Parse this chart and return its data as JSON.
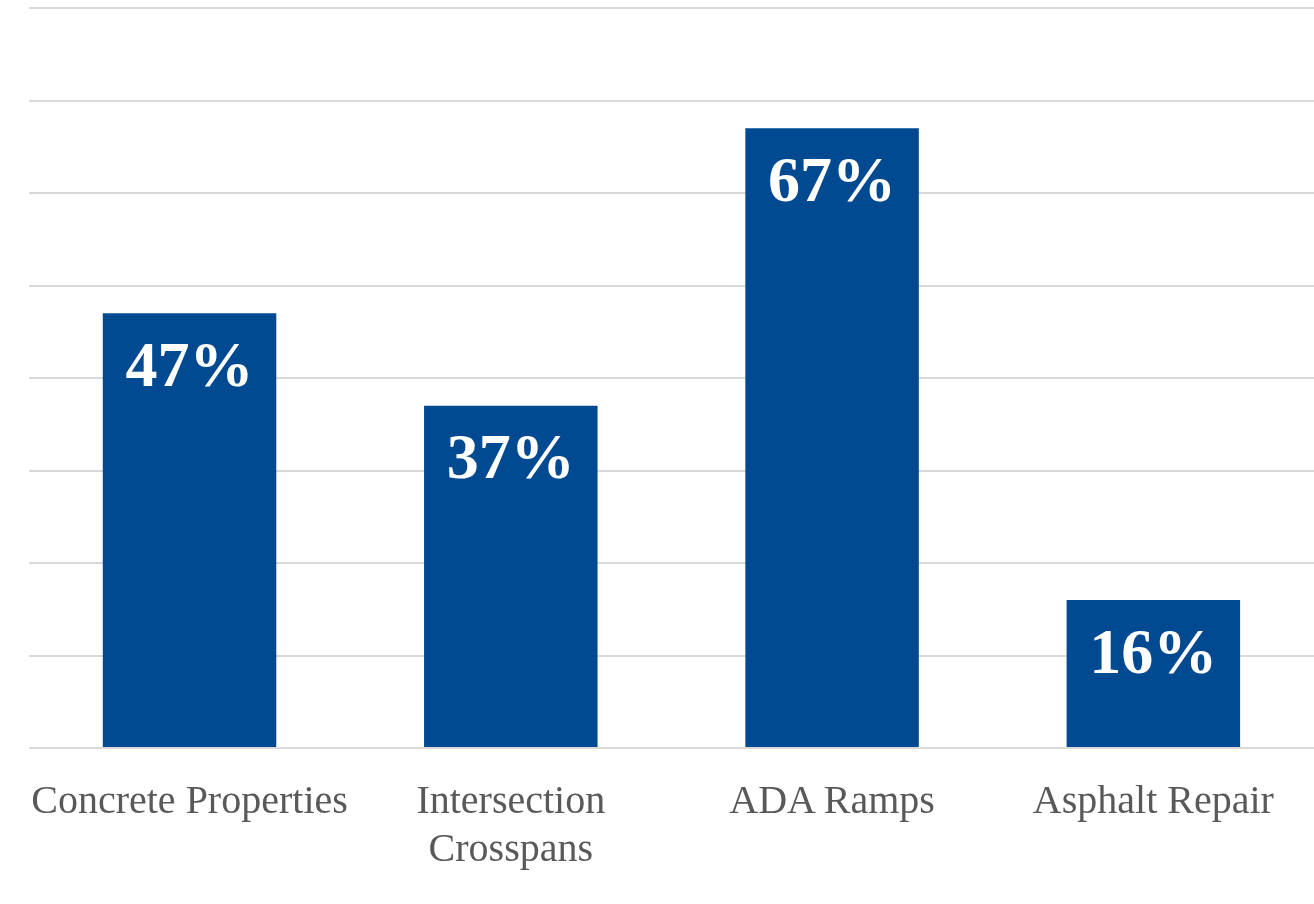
{
  "chart_data": {
    "type": "bar",
    "categories": [
      "Concrete Properties",
      "Intersection Crosspans",
      "ADA Ramps",
      "Asphalt Repair"
    ],
    "values": [
      47,
      37,
      67,
      16
    ],
    "color": "#014991",
    "ylim": [
      0,
      80
    ],
    "yticks": [
      {
        "value": 0,
        "label": null
      },
      {
        "value": 10,
        "label": null
      },
      {
        "value": 20,
        "label": null
      },
      {
        "value": 30,
        "label": null
      },
      {
        "value": 40,
        "label": null
      },
      {
        "value": 50,
        "label": null
      },
      {
        "value": 60,
        "label": null
      },
      {
        "value": 70,
        "label": null
      },
      {
        "value": 80,
        "label": null
      }
    ],
    "value_labels": [
      "47%",
      "37%",
      "67%",
      "16%"
    ],
    "grid": "y",
    "tick_labels": "x",
    "legend": false
  }
}
